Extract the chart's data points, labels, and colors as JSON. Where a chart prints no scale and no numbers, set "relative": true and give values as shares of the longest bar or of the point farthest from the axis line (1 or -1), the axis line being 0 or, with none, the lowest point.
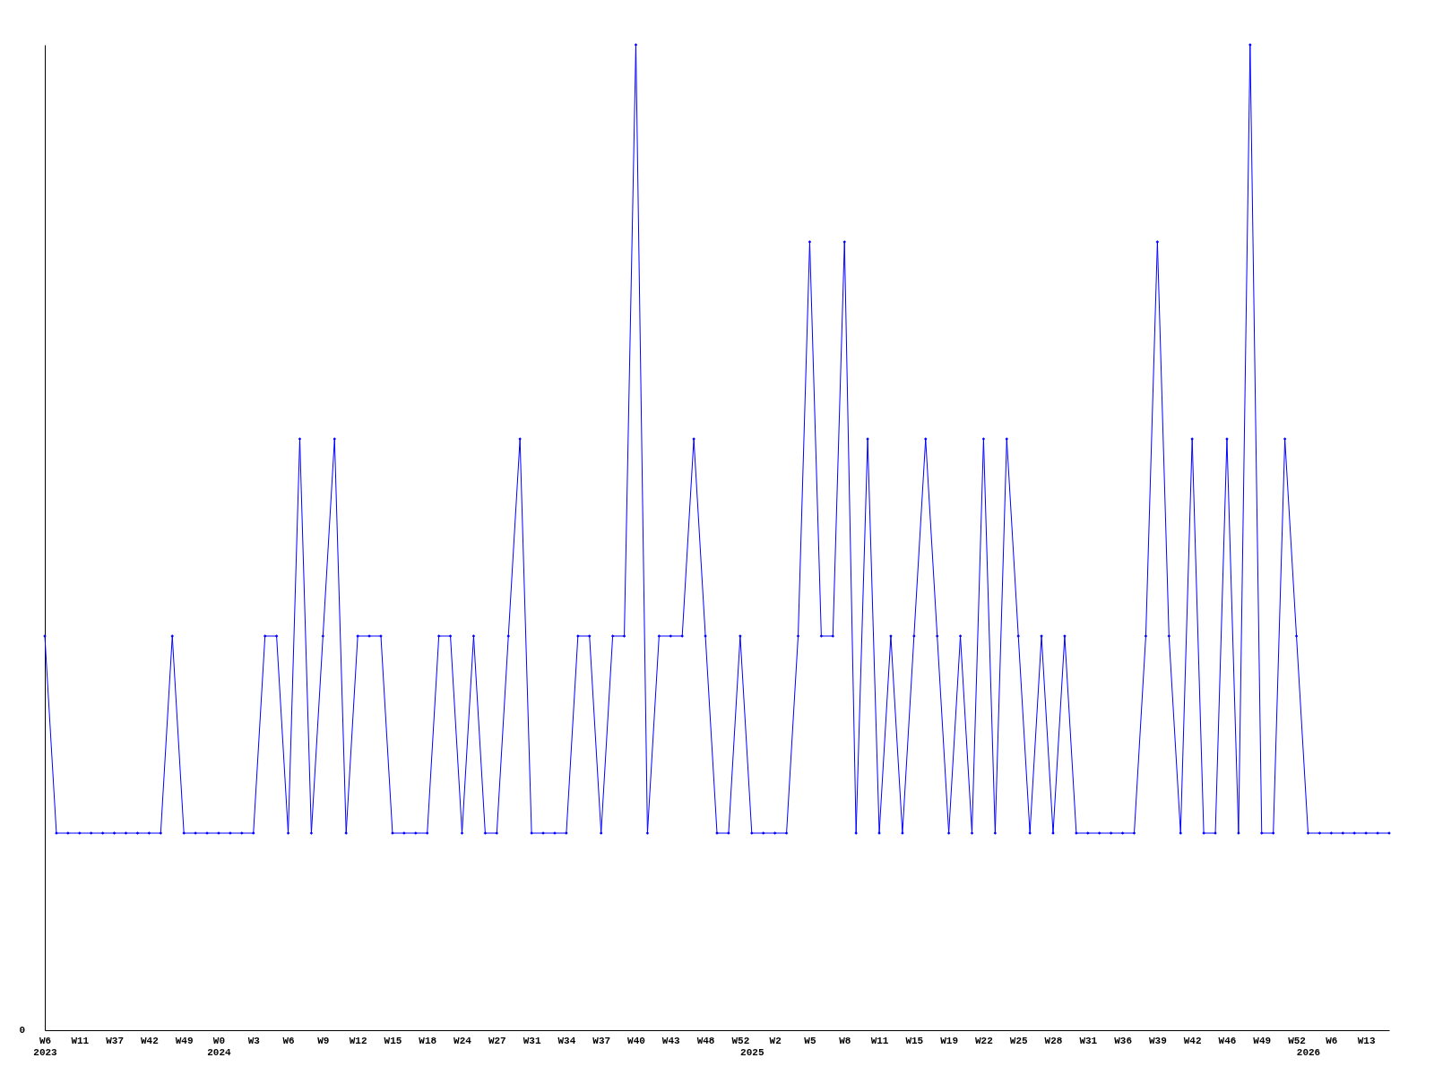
{
  "chart_data": {
    "type": "line",
    "relative": true,
    "color": "#0000ff",
    "marker": "diamond",
    "annotations": [
      "0"
    ],
    "categories": [
      "W6\n2023",
      null,
      null,
      "W11",
      null,
      null,
      "W37",
      null,
      null,
      "W42",
      null,
      null,
      "W49",
      null,
      null,
      "W0\n2024",
      null,
      null,
      "W3",
      null,
      null,
      "W6",
      null,
      null,
      "W9",
      null,
      null,
      "W12",
      null,
      null,
      "W15",
      null,
      null,
      "W18",
      null,
      null,
      "W24",
      null,
      null,
      "W27",
      null,
      null,
      "W31",
      null,
      null,
      "W34",
      null,
      null,
      "W37",
      null,
      null,
      "W40",
      null,
      null,
      "W43",
      null,
      null,
      "W48",
      null,
      null,
      "W52",
      "\n2025",
      null,
      "W2",
      null,
      null,
      "W5",
      null,
      null,
      "W8",
      null,
      null,
      "W11",
      null,
      null,
      "W15",
      null,
      null,
      "W19",
      null,
      null,
      "W22",
      null,
      null,
      "W25",
      null,
      null,
      "W28",
      null,
      null,
      "W31",
      null,
      null,
      "W36",
      null,
      null,
      "W39",
      null,
      null,
      "W42",
      null,
      null,
      "W46",
      null,
      null,
      "W49",
      null,
      null,
      "W52",
      "\n2026",
      null,
      "W6",
      null,
      null,
      "W13",
      null,
      null
    ],
    "values": [
      0.4,
      0.2,
      0.2,
      0.2,
      0.2,
      0.2,
      0.2,
      0.2,
      0.2,
      0.2,
      0.2,
      0.4,
      0.2,
      0.2,
      0.2,
      0.2,
      0.2,
      0.2,
      0.2,
      0.4,
      0.4,
      0.2,
      0.6,
      0.2,
      0.4,
      0.6,
      0.2,
      0.4,
      0.4,
      0.4,
      0.2,
      0.2,
      0.2,
      0.2,
      0.4,
      0.4,
      0.2,
      0.4,
      0.2,
      0.2,
      0.4,
      0.6,
      0.2,
      0.2,
      0.2,
      0.2,
      0.4,
      0.4,
      0.2,
      0.4,
      0.4,
      1,
      0.2,
      0.4,
      0.4,
      0.4,
      0.6,
      0.4,
      0.2,
      0.2,
      0.4,
      0.2,
      0.2,
      0.2,
      0.2,
      0.4,
      0.8,
      0.4,
      0.4,
      0.8,
      0.2,
      0.6,
      0.2,
      0.4,
      0.2,
      0.4,
      0.6,
      0.4,
      0.2,
      0.4,
      0.2,
      0.6,
      0.2,
      0.6,
      0.4,
      0.2,
      0.4,
      0.2,
      0.4,
      0.2,
      0.2,
      0.2,
      0.2,
      0.2,
      0.2,
      0.4,
      0.8,
      0.4,
      0.2,
      0.6,
      0.2,
      0.2,
      0.6,
      0.2,
      1,
      0.2,
      0.2,
      0.6,
      0.4,
      0.2,
      0.2,
      0.2,
      0.2,
      0.2,
      0.2,
      0.2,
      0.2
    ]
  }
}
